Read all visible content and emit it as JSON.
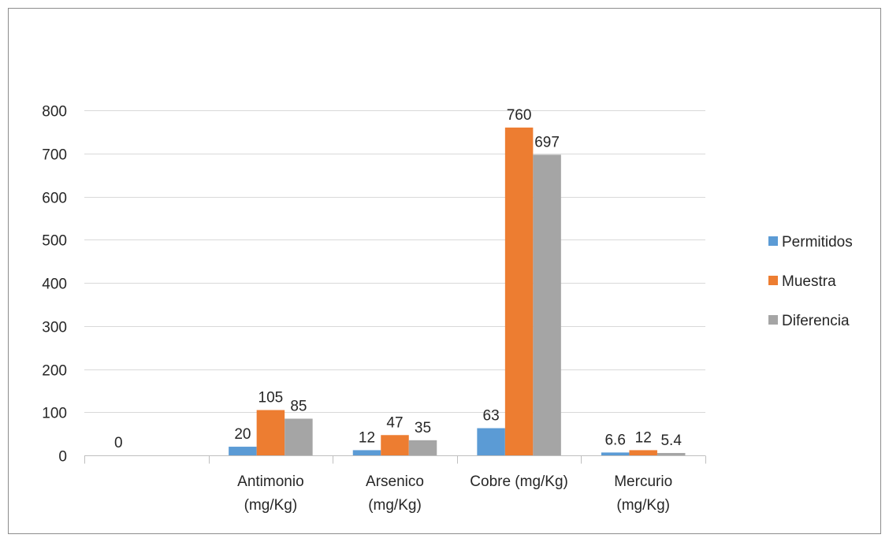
{
  "chart_data": {
    "type": "bar",
    "title": "",
    "xlabel": "",
    "ylabel": "",
    "ylim": [
      0,
      800
    ],
    "y_ticks": [
      0,
      100,
      200,
      300,
      400,
      500,
      600,
      700,
      800
    ],
    "grid": true,
    "legend_position": "right",
    "categories": [
      {
        "name": "",
        "lines": []
      },
      {
        "name": "Antimonio (mg/Kg)",
        "lines": [
          "Antimonio",
          "(mg/Kg)"
        ]
      },
      {
        "name": "Arsenico (mg/Kg)",
        "lines": [
          "Arsenico",
          "(mg/Kg)"
        ]
      },
      {
        "name": "Cobre (mg/Kg)",
        "lines": [
          "Cobre (mg/Kg)"
        ]
      },
      {
        "name": "Mercurio (mg/Kg)",
        "lines": [
          "Mercurio",
          "(mg/Kg)"
        ]
      }
    ],
    "series": [
      {
        "name": "Permitidos",
        "color": "#5b9bd5",
        "values": [
          null,
          20,
          12,
          63,
          6.6
        ],
        "labels": [
          "0",
          "20",
          "12",
          "63",
          "6.6"
        ]
      },
      {
        "name": "Muestra",
        "color": "#ed7d31",
        "values": [
          null,
          105,
          47,
          760,
          12
        ],
        "labels": [
          "",
          "105",
          "47",
          "760",
          "12"
        ]
      },
      {
        "name": "Diferencia",
        "color": "#a5a5a5",
        "values": [
          null,
          85,
          35,
          697,
          5.4
        ],
        "labels": [
          "",
          "85",
          "35",
          "697",
          "5.4"
        ]
      }
    ]
  }
}
